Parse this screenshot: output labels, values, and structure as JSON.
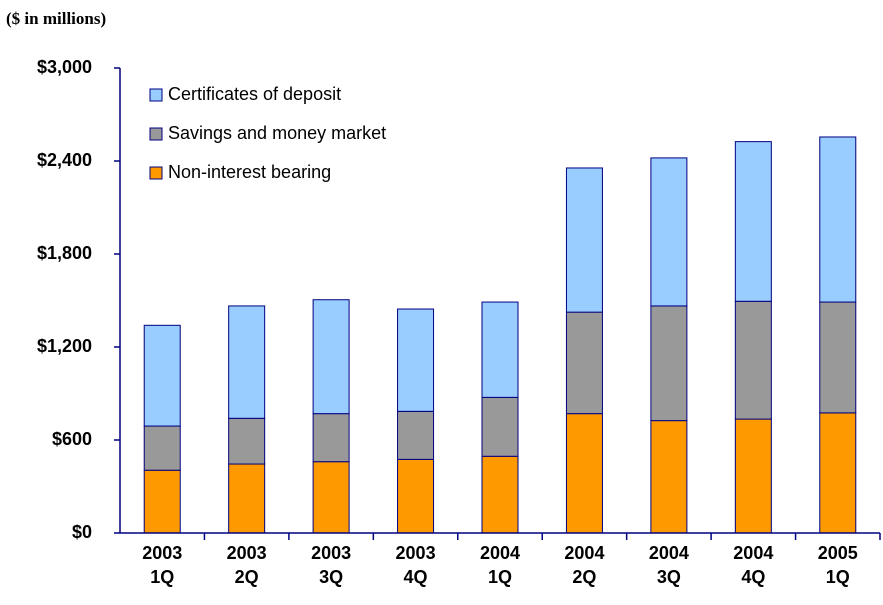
{
  "chart_data": {
    "type": "stacked-bar",
    "subtitle": "($ in millions)",
    "categories": [
      [
        "2003",
        "1Q"
      ],
      [
        "2003",
        "2Q"
      ],
      [
        "2003",
        "3Q"
      ],
      [
        "2003",
        "4Q"
      ],
      [
        "2004",
        "1Q"
      ],
      [
        "2004",
        "2Q"
      ],
      [
        "2004",
        "3Q"
      ],
      [
        "2004",
        "4Q"
      ],
      [
        "2005",
        "1Q"
      ]
    ],
    "series": [
      {
        "name": "Non-interest bearing",
        "color": "#ff9900",
        "values": [
          405,
          445,
          460,
          475,
          495,
          770,
          725,
          735,
          775
        ]
      },
      {
        "name": "Savings and money market",
        "color": "#999999",
        "values": [
          285,
          295,
          310,
          310,
          380,
          655,
          740,
          760,
          715
        ]
      },
      {
        "name": "Certificates of deposit",
        "color": "#99ccff",
        "values": [
          650,
          725,
          735,
          660,
          615,
          930,
          955,
          1030,
          1065
        ]
      }
    ],
    "ylim": [
      0,
      3000
    ],
    "yticks": [
      {
        "value": 0,
        "label": "$0"
      },
      {
        "value": 600,
        "label": "$600"
      },
      {
        "value": 1200,
        "label": "$1,200"
      },
      {
        "value": 1800,
        "label": "$1,800"
      },
      {
        "value": 2400,
        "label": "$2,400"
      },
      {
        "value": 3000,
        "label": "$3,000"
      }
    ]
  }
}
